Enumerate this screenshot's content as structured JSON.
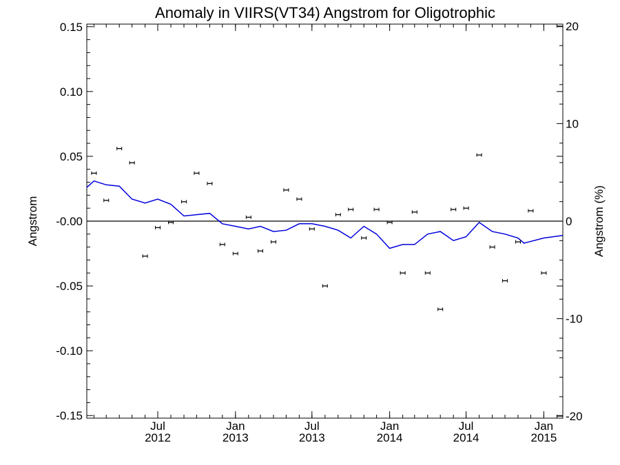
{
  "chart_data": {
    "type": "line",
    "title": "Anomaly in VIIRS(VT34) Angstrom for Oligotrophic",
    "ylabel": "Angstrom",
    "y2label": "Angstrom (%)",
    "ylim": [
      -0.152,
      0.152
    ],
    "y2lim": [
      -20.2,
      20.2
    ],
    "y_ticks": [
      "0.15",
      "0.10",
      "0.05",
      "-0.00",
      "-0.05",
      "-0.10",
      "-0.15"
    ],
    "y_tick_values": [
      0.15,
      0.1,
      0.05,
      0.0,
      -0.05,
      -0.1,
      -0.15
    ],
    "y2_ticks": [
      "20",
      "10",
      "0",
      "-10",
      "-20"
    ],
    "y2_tick_values": [
      20,
      10,
      0,
      -10,
      -20
    ],
    "x_range": [
      "2012-01-15",
      "2015-02-15"
    ],
    "x_ticks": [
      {
        "month": "Jul",
        "year": "2012",
        "date": "2012-07-01"
      },
      {
        "month": "Jan",
        "year": "2013",
        "date": "2013-01-01"
      },
      {
        "month": "Jul",
        "year": "2013",
        "date": "2013-07-01"
      },
      {
        "month": "Jan",
        "year": "2014",
        "date": "2014-01-01"
      },
      {
        "month": "Jul",
        "year": "2014",
        "date": "2014-07-01"
      },
      {
        "month": "Jan",
        "year": "2015",
        "date": "2015-01-01"
      }
    ],
    "zero_line": 0,
    "series": [
      {
        "type": "scatter",
        "marker": "errorbar",
        "color": "#000000",
        "points": [
          {
            "x": "2012-02-01",
            "y": 0.037
          },
          {
            "x": "2012-03-01",
            "y": 0.016
          },
          {
            "x": "2012-04-01",
            "y": 0.056
          },
          {
            "x": "2012-05-01",
            "y": 0.045
          },
          {
            "x": "2012-06-01",
            "y": -0.027
          },
          {
            "x": "2012-07-01",
            "y": -0.005
          },
          {
            "x": "2012-08-01",
            "y": -0.001
          },
          {
            "x": "2012-09-01",
            "y": 0.015
          },
          {
            "x": "2012-10-01",
            "y": 0.037
          },
          {
            "x": "2012-11-01",
            "y": 0.029
          },
          {
            "x": "2012-12-01",
            "y": -0.018
          },
          {
            "x": "2013-01-01",
            "y": -0.025
          },
          {
            "x": "2013-02-01",
            "y": 0.003
          },
          {
            "x": "2013-03-01",
            "y": -0.023
          },
          {
            "x": "2013-04-01",
            "y": -0.016
          },
          {
            "x": "2013-05-01",
            "y": 0.024
          },
          {
            "x": "2013-06-01",
            "y": 0.017
          },
          {
            "x": "2013-07-01",
            "y": -0.006
          },
          {
            "x": "2013-08-01",
            "y": -0.05
          },
          {
            "x": "2013-09-01",
            "y": 0.005
          },
          {
            "x": "2013-10-01",
            "y": 0.009
          },
          {
            "x": "2013-11-01",
            "y": -0.013
          },
          {
            "x": "2013-12-01",
            "y": 0.009
          },
          {
            "x": "2014-01-01",
            "y": -0.001
          },
          {
            "x": "2014-02-01",
            "y": -0.04
          },
          {
            "x": "2014-03-01",
            "y": 0.007
          },
          {
            "x": "2014-04-01",
            "y": -0.04
          },
          {
            "x": "2014-05-01",
            "y": -0.068
          },
          {
            "x": "2014-06-01",
            "y": 0.009
          },
          {
            "x": "2014-07-01",
            "y": 0.01
          },
          {
            "x": "2014-08-01",
            "y": 0.051
          },
          {
            "x": "2014-09-01",
            "y": -0.02
          },
          {
            "x": "2014-10-01",
            "y": -0.046
          },
          {
            "x": "2014-11-01",
            "y": -0.016
          },
          {
            "x": "2014-12-01",
            "y": 0.008
          },
          {
            "x": "2015-01-01",
            "y": -0.04
          }
        ]
      },
      {
        "type": "line",
        "color": "#0000dd",
        "points": [
          {
            "x": "2012-01-15",
            "y": 0.026
          },
          {
            "x": "2012-02-01",
            "y": 0.031
          },
          {
            "x": "2012-03-01",
            "y": 0.028
          },
          {
            "x": "2012-04-01",
            "y": 0.027
          },
          {
            "x": "2012-05-01",
            "y": 0.017
          },
          {
            "x": "2012-06-01",
            "y": 0.014
          },
          {
            "x": "2012-07-01",
            "y": 0.017
          },
          {
            "x": "2012-08-01",
            "y": 0.013
          },
          {
            "x": "2012-09-01",
            "y": 0.004
          },
          {
            "x": "2012-10-01",
            "y": 0.005
          },
          {
            "x": "2012-11-01",
            "y": 0.006
          },
          {
            "x": "2012-12-01",
            "y": -0.002
          },
          {
            "x": "2013-01-01",
            "y": -0.004
          },
          {
            "x": "2013-02-01",
            "y": -0.006
          },
          {
            "x": "2013-03-01",
            "y": -0.004
          },
          {
            "x": "2013-04-01",
            "y": -0.008
          },
          {
            "x": "2013-05-01",
            "y": -0.007
          },
          {
            "x": "2013-06-01",
            "y": -0.002
          },
          {
            "x": "2013-07-01",
            "y": -0.002
          },
          {
            "x": "2013-08-01",
            "y": -0.004
          },
          {
            "x": "2013-09-01",
            "y": -0.007
          },
          {
            "x": "2013-10-01",
            "y": -0.013
          },
          {
            "x": "2013-11-01",
            "y": -0.004
          },
          {
            "x": "2013-12-01",
            "y": -0.01
          },
          {
            "x": "2014-01-01",
            "y": -0.021
          },
          {
            "x": "2014-02-01",
            "y": -0.018
          },
          {
            "x": "2014-03-01",
            "y": -0.018
          },
          {
            "x": "2014-04-01",
            "y": -0.01
          },
          {
            "x": "2014-05-01",
            "y": -0.008
          },
          {
            "x": "2014-06-01",
            "y": -0.015
          },
          {
            "x": "2014-07-01",
            "y": -0.012
          },
          {
            "x": "2014-08-01",
            "y": -0.001
          },
          {
            "x": "2014-09-01",
            "y": -0.008
          },
          {
            "x": "2014-10-01",
            "y": -0.01
          },
          {
            "x": "2014-11-01",
            "y": -0.013
          },
          {
            "x": "2014-11-15",
            "y": -0.017
          },
          {
            "x": "2015-01-01",
            "y": -0.013
          },
          {
            "x": "2015-02-15",
            "y": -0.011
          }
        ]
      }
    ]
  }
}
